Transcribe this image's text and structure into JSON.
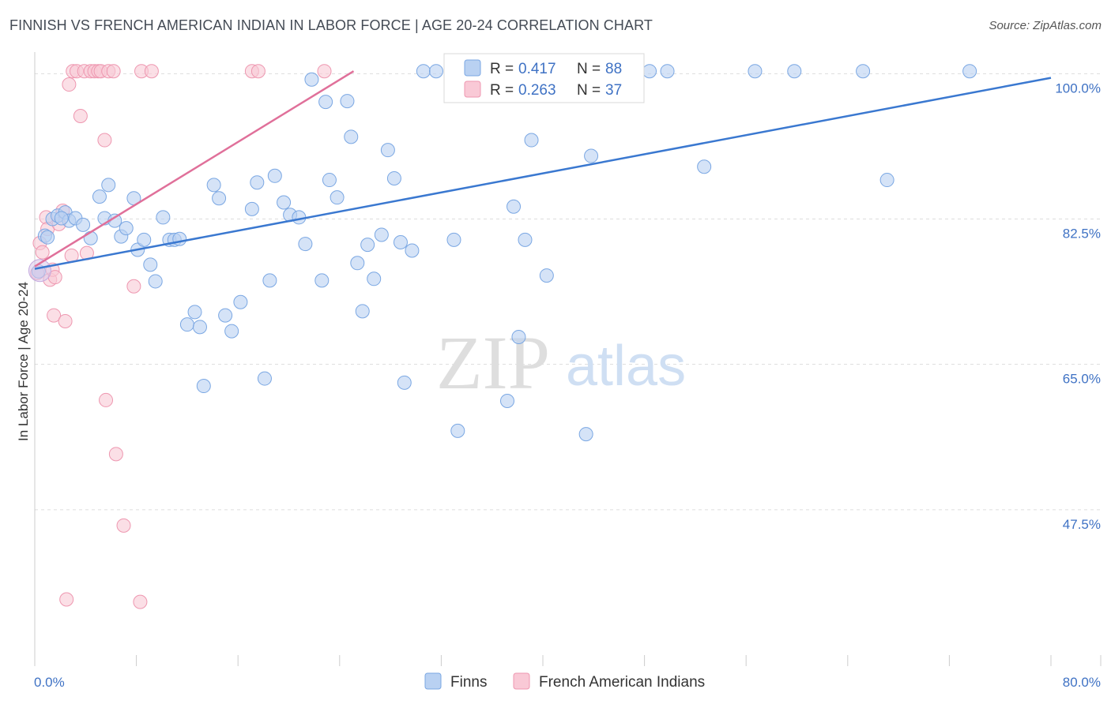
{
  "header": {
    "title": "FINNISH VS FRENCH AMERICAN INDIAN IN LABOR FORCE | AGE 20-24 CORRELATION CHART",
    "source": "Source: ZipAtlas.com"
  },
  "watermark": {
    "zip": "ZIP",
    "atlas": "atlas"
  },
  "colors": {
    "blue_fill": "#b9d1f2",
    "blue_stroke": "#7aa7e3",
    "blue_line": "#3a78d0",
    "pink_fill": "#f9c9d6",
    "pink_stroke": "#ee97b0",
    "pink_line": "#e0709a",
    "grid": "#dddddd",
    "axis_text": "#3f72c4"
  },
  "chart_data": {
    "type": "scatter",
    "title": "FINNISH VS FRENCH AMERICAN INDIAN IN LABOR FORCE | AGE 20-24 CORRELATION CHART",
    "xlabel": "",
    "ylabel": "In Labor Force | Age 20-24",
    "xlim": [
      0,
      80
    ],
    "ylim": [
      30,
      103
    ],
    "x_tick_labels": {
      "left": "0.0%",
      "right": "80.0%"
    },
    "y_ticks": [
      {
        "value": 100,
        "label": "100.0%"
      },
      {
        "value": 82.5,
        "label": "82.5%"
      },
      {
        "value": 65,
        "label": "65.0%"
      },
      {
        "value": 47.5,
        "label": "47.5%"
      }
    ],
    "legend": {
      "position": "top-center",
      "entries": [
        {
          "series": "Finns",
          "r_label": "R =",
          "r_value": "0.417",
          "n_label": "N =",
          "n_value": "88"
        },
        {
          "series": "French American Indians",
          "r_label": "R =",
          "r_value": "0.263",
          "n_label": "N =",
          "n_value": "37"
        }
      ]
    },
    "series": [
      {
        "name": "Finns",
        "color": "#b9d1f2",
        "trendline": {
          "x": [
            0,
            80
          ],
          "y": [
            76.5,
            99.5
          ]
        },
        "points": [
          [
            0.3,
            76.2
          ],
          [
            0.8,
            80.5
          ],
          [
            1.4,
            82.5
          ],
          [
            1.8,
            82.9
          ],
          [
            2.4,
            83.3
          ],
          [
            2.7,
            82.3
          ],
          [
            3.2,
            82.6
          ],
          [
            3.8,
            81.8
          ],
          [
            4.4,
            80.2
          ],
          [
            5.1,
            85.2
          ],
          [
            5.5,
            82.6
          ],
          [
            5.8,
            86.6
          ],
          [
            6.3,
            82.3
          ],
          [
            6.8,
            80.4
          ],
          [
            7.2,
            81.4
          ],
          [
            7.8,
            85.0
          ],
          [
            8.1,
            78.8
          ],
          [
            8.6,
            80.0
          ],
          [
            9.1,
            77.0
          ],
          [
            9.5,
            75.0
          ],
          [
            10.1,
            82.7
          ],
          [
            10.6,
            80.0
          ],
          [
            11.0,
            80.0
          ],
          [
            11.4,
            80.1
          ],
          [
            12.0,
            69.8
          ],
          [
            12.6,
            71.3
          ],
          [
            13.0,
            69.5
          ],
          [
            13.3,
            62.4
          ],
          [
            14.1,
            86.6
          ],
          [
            14.5,
            85.0
          ],
          [
            15.0,
            70.9
          ],
          [
            15.5,
            69.0
          ],
          [
            16.2,
            72.5
          ],
          [
            17.1,
            83.7
          ],
          [
            17.5,
            86.9
          ],
          [
            18.1,
            63.3
          ],
          [
            18.5,
            75.1
          ],
          [
            18.9,
            87.7
          ],
          [
            19.6,
            84.5
          ],
          [
            20.1,
            83.0
          ],
          [
            20.8,
            82.7
          ],
          [
            21.3,
            79.5
          ],
          [
            21.8,
            99.3
          ],
          [
            22.6,
            75.1
          ],
          [
            22.9,
            96.6
          ],
          [
            23.2,
            87.2
          ],
          [
            23.8,
            85.1
          ],
          [
            24.6,
            96.7
          ],
          [
            24.9,
            92.4
          ],
          [
            25.4,
            77.2
          ],
          [
            25.8,
            71.4
          ],
          [
            26.2,
            79.4
          ],
          [
            26.7,
            75.3
          ],
          [
            27.3,
            80.6
          ],
          [
            27.8,
            90.8
          ],
          [
            28.3,
            87.4
          ],
          [
            28.8,
            79.7
          ],
          [
            29.1,
            62.8
          ],
          [
            29.7,
            78.7
          ],
          [
            30.6,
            100.3
          ],
          [
            31.6,
            100.3
          ],
          [
            33.0,
            80.0
          ],
          [
            33.3,
            57.0
          ],
          [
            34.1,
            100.3
          ],
          [
            35.6,
            100.3
          ],
          [
            37.2,
            60.6
          ],
          [
            37.7,
            84.0
          ],
          [
            37.9,
            100.3
          ],
          [
            38.1,
            68.3
          ],
          [
            38.6,
            80.0
          ],
          [
            39.1,
            92.0
          ],
          [
            40.3,
            75.7
          ],
          [
            41.3,
            100.3
          ],
          [
            42.5,
            100.3
          ],
          [
            43.4,
            56.6
          ],
          [
            43.8,
            90.1
          ],
          [
            44.6,
            100.3
          ],
          [
            45.7,
            100.3
          ],
          [
            48.4,
            100.3
          ],
          [
            49.8,
            100.3
          ],
          [
            52.7,
            88.8
          ],
          [
            56.7,
            100.3
          ],
          [
            59.8,
            100.3
          ],
          [
            65.2,
            100.3
          ],
          [
            67.1,
            87.2
          ],
          [
            73.6,
            100.3
          ],
          [
            1.0,
            80.3
          ],
          [
            2.1,
            82.6
          ]
        ]
      },
      {
        "name": "French American Indians",
        "color": "#f9c9d6",
        "trendline": {
          "x": [
            0,
            25.1
          ],
          "y": [
            76.8,
            100.3
          ]
        },
        "points": [
          [
            0.4,
            79.6
          ],
          [
            0.6,
            78.5
          ],
          [
            0.9,
            82.7
          ],
          [
            1.0,
            81.3
          ],
          [
            1.2,
            75.2
          ],
          [
            1.4,
            76.4
          ],
          [
            1.5,
            70.9
          ],
          [
            1.6,
            75.5
          ],
          [
            1.9,
            81.9
          ],
          [
            2.2,
            83.5
          ],
          [
            2.4,
            70.2
          ],
          [
            2.7,
            98.7
          ],
          [
            2.9,
            78.1
          ],
          [
            3.0,
            100.3
          ],
          [
            3.3,
            100.3
          ],
          [
            3.6,
            94.9
          ],
          [
            3.9,
            100.3
          ],
          [
            4.1,
            78.4
          ],
          [
            4.4,
            100.3
          ],
          [
            4.7,
            100.3
          ],
          [
            5.0,
            100.3
          ],
          [
            5.2,
            100.3
          ],
          [
            5.5,
            92.0
          ],
          [
            5.6,
            60.7
          ],
          [
            5.8,
            100.3
          ],
          [
            6.2,
            100.3
          ],
          [
            6.4,
            54.2
          ],
          [
            7.0,
            45.6
          ],
          [
            7.8,
            74.4
          ],
          [
            8.3,
            36.4
          ],
          [
            8.4,
            100.3
          ],
          [
            9.2,
            100.3
          ],
          [
            17.1,
            100.3
          ],
          [
            17.6,
            100.3
          ],
          [
            22.8,
            100.3
          ],
          [
            0.2,
            76.0
          ],
          [
            2.5,
            36.7
          ]
        ]
      }
    ]
  }
}
